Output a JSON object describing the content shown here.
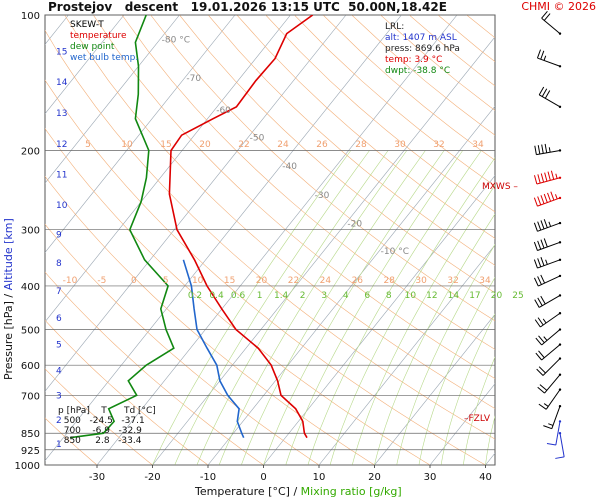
{
  "header": {
    "title": "Prostejov   descent   19.01.2026 13:15 UTC  50.00N,18.42E",
    "credit": "CHMI © 2026"
  },
  "legend": {
    "title": "SKEW-T",
    "items": [
      {
        "label": "temperature",
        "color": "#dd0000"
      },
      {
        "label": "dew point",
        "color": "#118811"
      },
      {
        "label": "wet bulb temp.",
        "color": "#2266cc"
      }
    ]
  },
  "lrl": {
    "title": "LRL:",
    "alt": "alt: 1407 m ASL",
    "press": "press: 869.6 hPa",
    "temp": "temp: 3.9 °C",
    "dwpt": "dwpt: -38.8 °C"
  },
  "levels_table": {
    "header": "p [hPa]    T      Td [°C]",
    "rows": [
      {
        "p": "500",
        "t": "-24.5",
        "td": "-37.1"
      },
      {
        "p": "700",
        "t": "-6.9",
        "td": "-32.9"
      },
      {
        "p": "850",
        "t": "2.8",
        "td": "-33.4"
      }
    ]
  },
  "markers": {
    "mxws": "MXWS",
    "fzlv": "FZLV"
  },
  "axes": {
    "ylabel_pressure": "Pressure [hPa]",
    "ylabel_sep": " / ",
    "ylabel_altitude": "Altitude [km]",
    "xlabel_temp": "Temperature [°C]",
    "xlabel_sep": " / ",
    "xlabel_mix": "Mixing ratio [g/kg]"
  },
  "chart_data": {
    "type": "line",
    "x_ticks": [
      -30,
      -20,
      -10,
      0,
      10,
      20,
      30,
      40
    ],
    "p_ticks": [
      100,
      200,
      300,
      400,
      500,
      600,
      700,
      850,
      925,
      1000
    ],
    "altitude_ticks_km": [
      1,
      2,
      3,
      4,
      5,
      6,
      7,
      8,
      9,
      10,
      11,
      12,
      13,
      14,
      15
    ],
    "isotherm_labels": [
      "-80 °C",
      "-70",
      "-60",
      "-50",
      "-40",
      "-30",
      "-20",
      "-10 °C"
    ],
    "mixing_ratio_labels_top": [
      "5",
      "10",
      "15",
      "20",
      "22",
      "24",
      "26",
      "28",
      "30",
      "32",
      "34"
    ],
    "mixing_ratio_labels_mid": [
      "-10",
      "-5",
      "0",
      "5",
      "10",
      "15",
      "20",
      "22",
      "24",
      "26",
      "28",
      "30",
      "32",
      "34"
    ],
    "mixing_ratio_labels_green": [
      "0.2",
      "0.4",
      "0.6",
      "1",
      "1.4",
      "2",
      "3",
      "4",
      "6",
      "8",
      "10",
      "12",
      "14",
      "17",
      "20",
      "25"
    ],
    "series": [
      {
        "name": "temperature",
        "color": "#dd0000",
        "points": [
          [
            869.6,
            3.9
          ],
          [
            850,
            2.8
          ],
          [
            800,
            0.8
          ],
          [
            750,
            -2.3
          ],
          [
            700,
            -6.9
          ],
          [
            650,
            -9.6
          ],
          [
            600,
            -13.0
          ],
          [
            550,
            -17.8
          ],
          [
            500,
            -24.5
          ],
          [
            450,
            -30.0
          ],
          [
            400,
            -36.0
          ],
          [
            350,
            -42.0
          ],
          [
            300,
            -49.5
          ],
          [
            250,
            -56.0
          ],
          [
            200,
            -62.0
          ],
          [
            185,
            -62.3
          ],
          [
            170,
            -59.0
          ],
          [
            160,
            -56.5
          ],
          [
            140,
            -56.8
          ],
          [
            125,
            -56.5
          ],
          [
            110,
            -58.0
          ],
          [
            100,
            -56.0
          ]
        ]
      },
      {
        "name": "dew point",
        "color": "#118811",
        "points": [
          [
            869.6,
            -38.8
          ],
          [
            850,
            -33.4
          ],
          [
            800,
            -33.2
          ],
          [
            750,
            -36.0
          ],
          [
            700,
            -32.9
          ],
          [
            650,
            -36.5
          ],
          [
            600,
            -35.5
          ],
          [
            550,
            -33.0
          ],
          [
            500,
            -37.1
          ],
          [
            450,
            -41.0
          ],
          [
            400,
            -43.0
          ],
          [
            350,
            -51.0
          ],
          [
            300,
            -58.0
          ],
          [
            260,
            -60.0
          ],
          [
            230,
            -62.5
          ],
          [
            200,
            -66.0
          ],
          [
            170,
            -73.0
          ],
          [
            150,
            -76.0
          ],
          [
            130,
            -80.0
          ],
          [
            115,
            -84.0
          ],
          [
            100,
            -86.0
          ]
        ]
      },
      {
        "name": "wet bulb temp.",
        "color": "#2266cc",
        "points": [
          [
            869.6,
            -7.5
          ],
          [
            850,
            -8.5
          ],
          [
            800,
            -11.0
          ],
          [
            750,
            -12.5
          ],
          [
            700,
            -16.5
          ],
          [
            650,
            -20.0
          ],
          [
            600,
            -22.8
          ],
          [
            550,
            -27.0
          ],
          [
            500,
            -31.5
          ],
          [
            450,
            -35.0
          ],
          [
            400,
            -38.8
          ],
          [
            350,
            -44.0
          ]
        ]
      }
    ],
    "winds": [
      {
        "p": 110,
        "dir": 310,
        "speed": 20
      },
      {
        "p": 130,
        "dir": 290,
        "speed": 25
      },
      {
        "p": 160,
        "dir": 300,
        "speed": 30
      },
      {
        "p": 200,
        "dir": 260,
        "speed": 45
      },
      {
        "p": 230,
        "dir": 255,
        "speed": 75
      },
      {
        "p": 255,
        "dir": 250,
        "speed": 65
      },
      {
        "p": 290,
        "dir": 250,
        "speed": 45
      },
      {
        "p": 320,
        "dir": 250,
        "speed": 40
      },
      {
        "p": 350,
        "dir": 250,
        "speed": 35
      },
      {
        "p": 380,
        "dir": 245,
        "speed": 30
      },
      {
        "p": 420,
        "dir": 240,
        "speed": 30
      },
      {
        "p": 460,
        "dir": 235,
        "speed": 25
      },
      {
        "p": 500,
        "dir": 230,
        "speed": 25
      },
      {
        "p": 540,
        "dir": 230,
        "speed": 20
      },
      {
        "p": 580,
        "dir": 225,
        "speed": 20
      },
      {
        "p": 630,
        "dir": 220,
        "speed": 20
      },
      {
        "p": 680,
        "dir": 215,
        "speed": 15
      },
      {
        "p": 740,
        "dir": 200,
        "speed": 15
      },
      {
        "p": 800,
        "dir": 190,
        "speed": 10
      },
      {
        "p": 850,
        "dir": 170,
        "speed": 10
      }
    ]
  }
}
